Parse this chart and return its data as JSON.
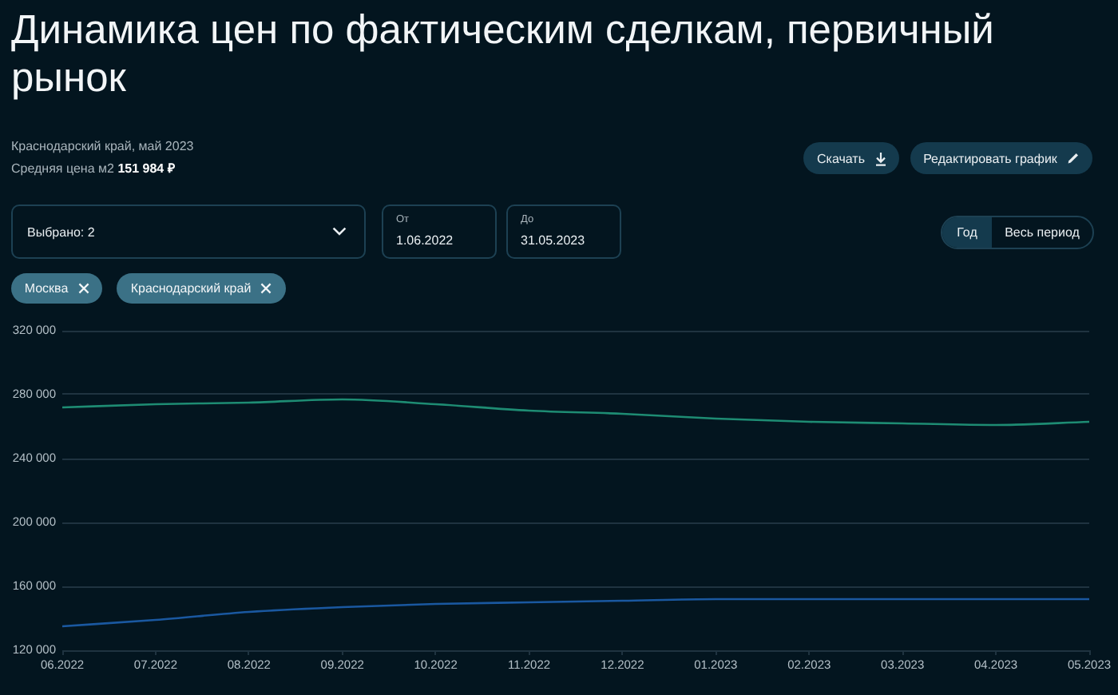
{
  "chart_data": {
    "type": "line",
    "title": "Динамика цен по фактическим сделкам, первичный рынок",
    "subtitle": "Краснодарский край, май 2023",
    "annotations": [
      "Средняя цена м2",
      "151 984 ₽",
      "Скачать",
      "Редактировать график",
      "Выбрано: 2",
      "От",
      "1.06.2022",
      "До",
      "31.05.2023",
      "Год",
      "Весь период",
      "Москва",
      "Краснодарский край"
    ],
    "categories": [
      "06.2022",
      "07.2022",
      "08.2022",
      "09.2022",
      "10.2022",
      "11.2022",
      "12.2022",
      "01.2023",
      "02.2023",
      "03.2023",
      "04.2023",
      "05.2023"
    ],
    "series": [
      {
        "color": "#1e8c73",
        "values": [
          272000,
          274000,
          275000,
          277000,
          274000,
          270000,
          268000,
          265000,
          263000,
          262000,
          261000,
          263000
        ]
      },
      {
        "color": "#1a58a0",
        "values": [
          135000,
          139000,
          144000,
          147000,
          149000,
          150000,
          151000,
          152000,
          152000,
          152000,
          152000,
          152000
        ]
      }
    ],
    "ylim": [
      120000,
      320000
    ],
    "yticks": [
      {
        "value": 120000,
        "label": "120 000"
      },
      {
        "value": 160000,
        "label": "160 000"
      },
      {
        "value": 200000,
        "label": "200 000"
      },
      {
        "value": 240000,
        "label": "240 000"
      },
      {
        "value": 280000,
        "label": "280 000"
      },
      {
        "value": 320000,
        "label": "320 000"
      }
    ],
    "grid": "y"
  }
}
